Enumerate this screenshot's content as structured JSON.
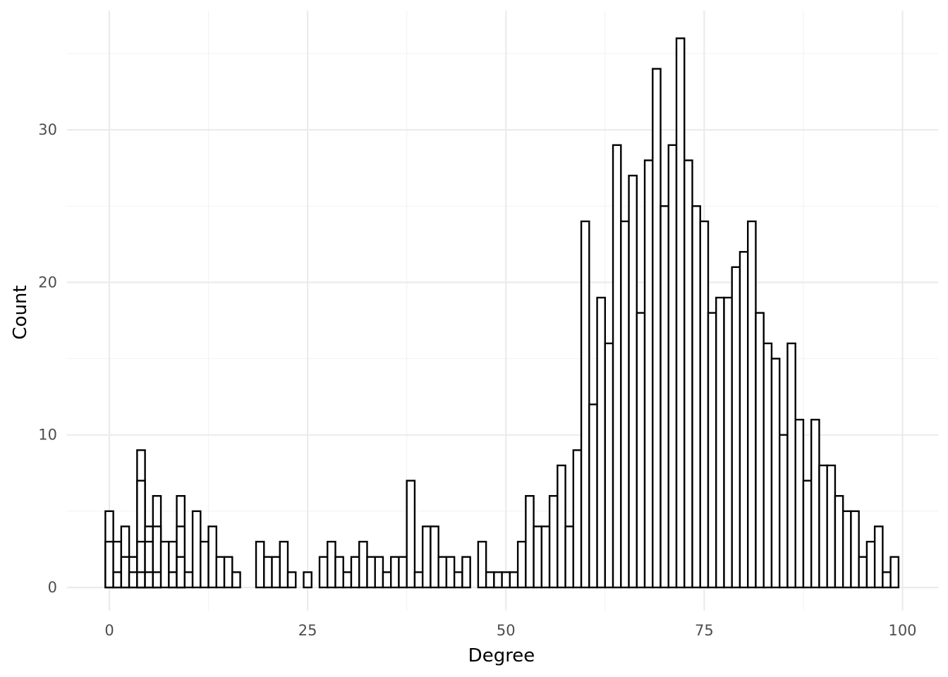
{
  "chart_data": {
    "type": "bar",
    "subtype": "histogram (overlapping bins)",
    "xlabel": "Degree",
    "ylabel": "Count",
    "xlim": [
      -2.5,
      102.5
    ],
    "ylim": [
      -1.8,
      37.5
    ],
    "x_ticks": [
      0,
      25,
      50,
      75,
      100
    ],
    "y_ticks": [
      0,
      10,
      20,
      30
    ],
    "grid": true,
    "bar_fill": "#ffffff",
    "bar_stroke": "#000000",
    "bin_width": 1,
    "bars": [
      {
        "x": 0,
        "count": 5
      },
      {
        "x": 0,
        "count": 3
      },
      {
        "x": 1,
        "count": 3
      },
      {
        "x": 1,
        "count": 1
      },
      {
        "x": 2,
        "count": 4
      },
      {
        "x": 2,
        "count": 2
      },
      {
        "x": 3,
        "count": 2
      },
      {
        "x": 3,
        "count": 1
      },
      {
        "x": 4,
        "count": 9
      },
      {
        "x": 4,
        "count": 7
      },
      {
        "x": 4,
        "count": 3
      },
      {
        "x": 4,
        "count": 1
      },
      {
        "x": 5,
        "count": 4
      },
      {
        "x": 5,
        "count": 3
      },
      {
        "x": 5,
        "count": 1
      },
      {
        "x": 6,
        "count": 6
      },
      {
        "x": 6,
        "count": 4
      },
      {
        "x": 6,
        "count": 1
      },
      {
        "x": 7,
        "count": 3
      },
      {
        "x": 8,
        "count": 3
      },
      {
        "x": 8,
        "count": 1
      },
      {
        "x": 9,
        "count": 6
      },
      {
        "x": 9,
        "count": 4
      },
      {
        "x": 9,
        "count": 2
      },
      {
        "x": 10,
        "count": 1
      },
      {
        "x": 11,
        "count": 5
      },
      {
        "x": 12,
        "count": 3
      },
      {
        "x": 13,
        "count": 4
      },
      {
        "x": 14,
        "count": 2
      },
      {
        "x": 15,
        "count": 2
      },
      {
        "x": 16,
        "count": 1
      },
      {
        "x": 19,
        "count": 3
      },
      {
        "x": 20,
        "count": 2
      },
      {
        "x": 21,
        "count": 2
      },
      {
        "x": 22,
        "count": 3
      },
      {
        "x": 23,
        "count": 1
      },
      {
        "x": 25,
        "count": 1
      },
      {
        "x": 27,
        "count": 2
      },
      {
        "x": 28,
        "count": 3
      },
      {
        "x": 29,
        "count": 2
      },
      {
        "x": 30,
        "count": 1
      },
      {
        "x": 31,
        "count": 2
      },
      {
        "x": 32,
        "count": 3
      },
      {
        "x": 33,
        "count": 2
      },
      {
        "x": 34,
        "count": 2
      },
      {
        "x": 35,
        "count": 1
      },
      {
        "x": 36,
        "count": 2
      },
      {
        "x": 37,
        "count": 2
      },
      {
        "x": 38,
        "count": 7
      },
      {
        "x": 39,
        "count": 1
      },
      {
        "x": 40,
        "count": 4
      },
      {
        "x": 41,
        "count": 4
      },
      {
        "x": 42,
        "count": 2
      },
      {
        "x": 43,
        "count": 2
      },
      {
        "x": 44,
        "count": 1
      },
      {
        "x": 45,
        "count": 2
      },
      {
        "x": 47,
        "count": 3
      },
      {
        "x": 48,
        "count": 1
      },
      {
        "x": 49,
        "count": 1
      },
      {
        "x": 50,
        "count": 1
      },
      {
        "x": 51,
        "count": 1
      },
      {
        "x": 52,
        "count": 3
      },
      {
        "x": 53,
        "count": 6
      },
      {
        "x": 54,
        "count": 4
      },
      {
        "x": 55,
        "count": 4
      },
      {
        "x": 56,
        "count": 6
      },
      {
        "x": 57,
        "count": 8
      },
      {
        "x": 58,
        "count": 4
      },
      {
        "x": 59,
        "count": 9
      },
      {
        "x": 60,
        "count": 24
      },
      {
        "x": 61,
        "count": 12
      },
      {
        "x": 62,
        "count": 19
      },
      {
        "x": 63,
        "count": 16
      },
      {
        "x": 64,
        "count": 29
      },
      {
        "x": 65,
        "count": 24
      },
      {
        "x": 66,
        "count": 27
      },
      {
        "x": 67,
        "count": 18
      },
      {
        "x": 68,
        "count": 28
      },
      {
        "x": 69,
        "count": 34
      },
      {
        "x": 70,
        "count": 25
      },
      {
        "x": 71,
        "count": 29
      },
      {
        "x": 72,
        "count": 36
      },
      {
        "x": 73,
        "count": 28
      },
      {
        "x": 74,
        "count": 25
      },
      {
        "x": 75,
        "count": 24
      },
      {
        "x": 76,
        "count": 18
      },
      {
        "x": 77,
        "count": 19
      },
      {
        "x": 78,
        "count": 19
      },
      {
        "x": 79,
        "count": 21
      },
      {
        "x": 80,
        "count": 22
      },
      {
        "x": 81,
        "count": 24
      },
      {
        "x": 82,
        "count": 18
      },
      {
        "x": 83,
        "count": 16
      },
      {
        "x": 84,
        "count": 15
      },
      {
        "x": 85,
        "count": 10
      },
      {
        "x": 86,
        "count": 16
      },
      {
        "x": 87,
        "count": 11
      },
      {
        "x": 88,
        "count": 7
      },
      {
        "x": 89,
        "count": 11
      },
      {
        "x": 90,
        "count": 8
      },
      {
        "x": 91,
        "count": 8
      },
      {
        "x": 92,
        "count": 6
      },
      {
        "x": 93,
        "count": 5
      },
      {
        "x": 94,
        "count": 5
      },
      {
        "x": 95,
        "count": 2
      },
      {
        "x": 96,
        "count": 3
      },
      {
        "x": 97,
        "count": 4
      },
      {
        "x": 98,
        "count": 1
      },
      {
        "x": 99,
        "count": 2
      }
    ]
  }
}
